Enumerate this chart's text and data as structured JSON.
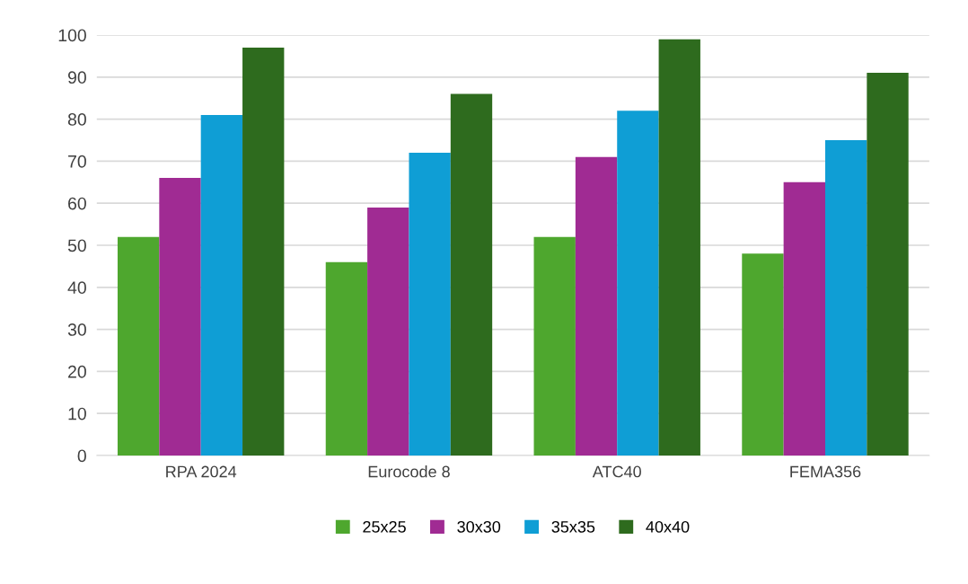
{
  "chart_data": {
    "type": "bar",
    "categories": [
      "RPA 2024",
      "Eurocode 8",
      "ATC40",
      "FEMA356"
    ],
    "series": [
      {
        "name": "25x25",
        "color": "#4ea72e",
        "values": [
          52,
          46,
          52,
          48
        ]
      },
      {
        "name": "30x30",
        "color": "#a02b93",
        "values": [
          66,
          59,
          71,
          65
        ]
      },
      {
        "name": "35x35",
        "color": "#0f9ed5",
        "values": [
          81,
          72,
          82,
          75
        ]
      },
      {
        "name": "40x40",
        "color": "#2e6b1e",
        "values": [
          97,
          86,
          99,
          91
        ]
      }
    ],
    "ylim": [
      0,
      100
    ],
    "yticks": [
      0,
      10,
      20,
      30,
      40,
      50,
      60,
      70,
      80,
      90,
      100
    ],
    "grid": "y",
    "legend": "bottom"
  }
}
